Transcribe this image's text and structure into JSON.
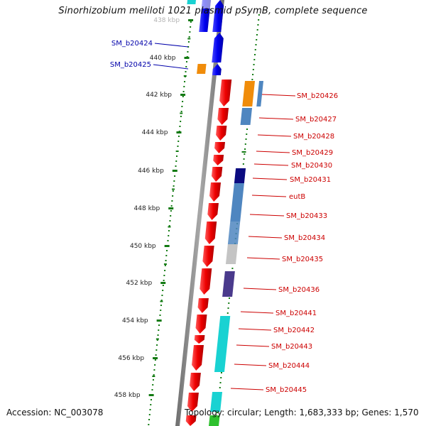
{
  "title": "Sinorhizobium meliloti 1021 plasmid pSymB, complete sequence",
  "footer": {
    "accession": "Accession: NC_003078",
    "topology": "Topology: circular; Length: 1,683,333 bp; Genes: 1,570"
  },
  "colors": {
    "strand_forward": "#ee0000",
    "strand_reverse": "#0000ee",
    "backbone": "#8a8a8a",
    "tick": "#127a12",
    "label_forward": "#cc0000",
    "label_reverse": "#0000aa",
    "cog_orange": "#f08c0a",
    "cog_steelblue": "#4f86c0",
    "cog_navy": "#0b0b80",
    "cog_purple": "#4a3a8c",
    "cog_gray": "#c4c4c4",
    "cog_cyan": "#19d2d2",
    "cog_green": "#2ec02e"
  },
  "axis_labels": [
    "438 kbp",
    "440 kbp",
    "442 kbp",
    "444 kbp",
    "446 kbp",
    "448 kbp",
    "450 kbp",
    "452 kbp",
    "454 kbp",
    "456 kbp",
    "458 kbp"
  ],
  "genes": [
    {
      "label": "SM_b20424",
      "strand": "reverse"
    },
    {
      "label": "SM_b20425",
      "strand": "reverse"
    },
    {
      "label": "SM_b20426",
      "strand": "forward"
    },
    {
      "label": "SM_b20427",
      "strand": "forward"
    },
    {
      "label": "SM_b20428",
      "strand": "forward"
    },
    {
      "label": "SM_b20429",
      "strand": "forward"
    },
    {
      "label": "SM_b20430",
      "strand": "forward"
    },
    {
      "label": "SM_b20431",
      "strand": "forward"
    },
    {
      "label": "eutB",
      "strand": "forward"
    },
    {
      "label": "SM_b20433",
      "strand": "forward"
    },
    {
      "label": "SM_b20434",
      "strand": "forward"
    },
    {
      "label": "SM_b20435",
      "strand": "forward"
    },
    {
      "label": "SM_b20436",
      "strand": "forward"
    },
    {
      "label": "SM_b20441",
      "strand": "forward"
    },
    {
      "label": "SM_b20442",
      "strand": "forward"
    },
    {
      "label": "SM_b20443",
      "strand": "forward"
    },
    {
      "label": "SM_b20444",
      "strand": "forward"
    },
    {
      "label": "SM_b20445",
      "strand": "forward"
    }
  ]
}
